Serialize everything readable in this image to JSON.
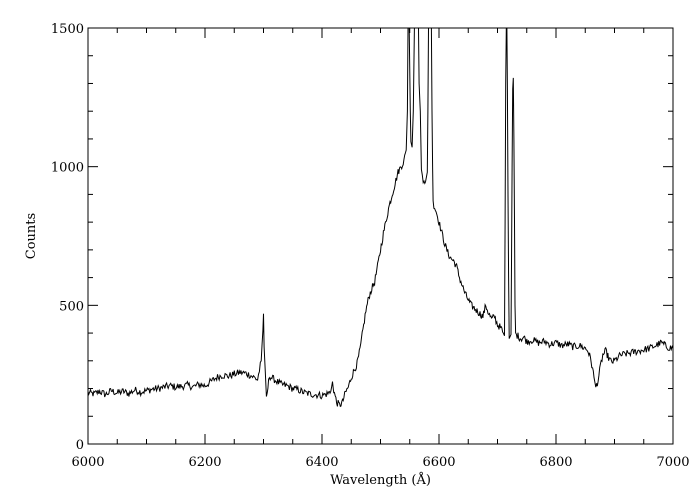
{
  "chart_data": {
    "type": "line",
    "xlabel": "Wavelength (Å)",
    "ylabel": "Counts",
    "xlim": [
      6000,
      7000
    ],
    "ylim": [
      0,
      1500
    ],
    "x_ticks": [
      6000,
      6200,
      6400,
      6600,
      6800,
      7000
    ],
    "y_ticks": [
      0,
      500,
      1000,
      1500
    ],
    "x_minor_step": 50,
    "y_minor_step": 100,
    "grid": false,
    "line_color": "#000000",
    "series": [
      {
        "points": [
          [
            6000,
            185
          ],
          [
            6010,
            180
          ],
          [
            6020,
            190
          ],
          [
            6030,
            178
          ],
          [
            6040,
            192
          ],
          [
            6050,
            184
          ],
          [
            6060,
            190
          ],
          [
            6070,
            182
          ],
          [
            6080,
            195
          ],
          [
            6090,
            188
          ],
          [
            6100,
            192
          ],
          [
            6110,
            198
          ],
          [
            6120,
            200
          ],
          [
            6130,
            205
          ],
          [
            6140,
            210
          ],
          [
            6150,
            205
          ],
          [
            6160,
            208
          ],
          [
            6170,
            212
          ],
          [
            6180,
            206
          ],
          [
            6190,
            215
          ],
          [
            6200,
            210
          ],
          [
            6210,
            225
          ],
          [
            6220,
            240
          ],
          [
            6230,
            248
          ],
          [
            6240,
            245
          ],
          [
            6250,
            252
          ],
          [
            6260,
            258
          ],
          [
            6270,
            255
          ],
          [
            6280,
            245
          ],
          [
            6290,
            232
          ],
          [
            6296,
            300
          ],
          [
            6299,
            410
          ],
          [
            6300,
            470
          ],
          [
            6301,
            350
          ],
          [
            6303,
            260
          ],
          [
            6305,
            160
          ],
          [
            6310,
            245
          ],
          [
            6320,
            230
          ],
          [
            6330,
            215
          ],
          [
            6340,
            210
          ],
          [
            6350,
            200
          ],
          [
            6360,
            195
          ],
          [
            6370,
            185
          ],
          [
            6380,
            180
          ],
          [
            6390,
            178
          ],
          [
            6400,
            175
          ],
          [
            6410,
            182
          ],
          [
            6415,
            190
          ],
          [
            6418,
            225
          ],
          [
            6420,
            195
          ],
          [
            6425,
            150
          ],
          [
            6430,
            140
          ],
          [
            6435,
            150
          ],
          [
            6440,
            185
          ],
          [
            6445,
            205
          ],
          [
            6450,
            240
          ],
          [
            6455,
            265
          ],
          [
            6460,
            290
          ],
          [
            6465,
            340
          ],
          [
            6470,
            410
          ],
          [
            6475,
            480
          ],
          [
            6480,
            530
          ],
          [
            6485,
            560
          ],
          [
            6490,
            585
          ],
          [
            6495,
            640
          ],
          [
            6500,
            700
          ],
          [
            6505,
            760
          ],
          [
            6510,
            810
          ],
          [
            6515,
            860
          ],
          [
            6520,
            900
          ],
          [
            6525,
            940
          ],
          [
            6530,
            980
          ],
          [
            6535,
            1000
          ],
          [
            6540,
            1020
          ],
          [
            6544,
            1060
          ],
          [
            6546,
            1200
          ],
          [
            6547,
            1500
          ],
          [
            6549,
            1500
          ],
          [
            6551,
            1200
          ],
          [
            6552,
            1090
          ],
          [
            6554,
            1070
          ],
          [
            6556,
            1200
          ],
          [
            6558,
            1500
          ],
          [
            6565,
            1500
          ],
          [
            6566,
            1300
          ],
          [
            6568,
            1200
          ],
          [
            6570,
            990
          ],
          [
            6573,
            950
          ],
          [
            6577,
            945
          ],
          [
            6580,
            980
          ],
          [
            6581,
            1200
          ],
          [
            6582,
            1500
          ],
          [
            6587,
            1500
          ],
          [
            6588,
            1200
          ],
          [
            6589,
            1000
          ],
          [
            6590,
            870
          ],
          [
            6595,
            840
          ],
          [
            6600,
            800
          ],
          [
            6605,
            760
          ],
          [
            6610,
            720
          ],
          [
            6615,
            690
          ],
          [
            6620,
            670
          ],
          [
            6625,
            660
          ],
          [
            6630,
            640
          ],
          [
            6635,
            600
          ],
          [
            6640,
            570
          ],
          [
            6645,
            540
          ],
          [
            6650,
            520
          ],
          [
            6655,
            500
          ],
          [
            6660,
            490
          ],
          [
            6665,
            480
          ],
          [
            6670,
            470
          ],
          [
            6675,
            460
          ],
          [
            6680,
            500
          ],
          [
            6685,
            470
          ],
          [
            6690,
            450
          ],
          [
            6695,
            460
          ],
          [
            6700,
            430
          ],
          [
            6705,
            420
          ],
          [
            6710,
            400
          ],
          [
            6712,
            390
          ],
          [
            6713,
            800
          ],
          [
            6714,
            1300
          ],
          [
            6715,
            1500
          ],
          [
            6716,
            1500
          ],
          [
            6717,
            1280
          ],
          [
            6718,
            900
          ],
          [
            6719,
            600
          ],
          [
            6720,
            380
          ],
          [
            6722,
            390
          ],
          [
            6723,
            395
          ],
          [
            6724,
            650
          ],
          [
            6725,
            1000
          ],
          [
            6726,
            1280
          ],
          [
            6727,
            1320
          ],
          [
            6728,
            1100
          ],
          [
            6729,
            800
          ],
          [
            6730,
            500
          ],
          [
            6731,
            395
          ],
          [
            6735,
            390
          ],
          [
            6740,
            380
          ],
          [
            6745,
            385
          ],
          [
            6750,
            370
          ],
          [
            6760,
            375
          ],
          [
            6770,
            365
          ],
          [
            6780,
            370
          ],
          [
            6790,
            360
          ],
          [
            6800,
            365
          ],
          [
            6810,
            355
          ],
          [
            6820,
            360
          ],
          [
            6830,
            350
          ],
          [
            6840,
            355
          ],
          [
            6850,
            345
          ],
          [
            6855,
            335
          ],
          [
            6860,
            300
          ],
          [
            6865,
            240
          ],
          [
            6868,
            205
          ],
          [
            6872,
            230
          ],
          [
            6876,
            280
          ],
          [
            6880,
            320
          ],
          [
            6885,
            335
          ],
          [
            6890,
            310
          ],
          [
            6895,
            295
          ],
          [
            6900,
            300
          ],
          [
            6910,
            320
          ],
          [
            6920,
            325
          ],
          [
            6930,
            330
          ],
          [
            6940,
            335
          ],
          [
            6950,
            340
          ],
          [
            6960,
            345
          ],
          [
            6970,
            355
          ],
          [
            6980,
            365
          ],
          [
            6990,
            350
          ],
          [
            7000,
            345
          ]
        ]
      }
    ]
  }
}
